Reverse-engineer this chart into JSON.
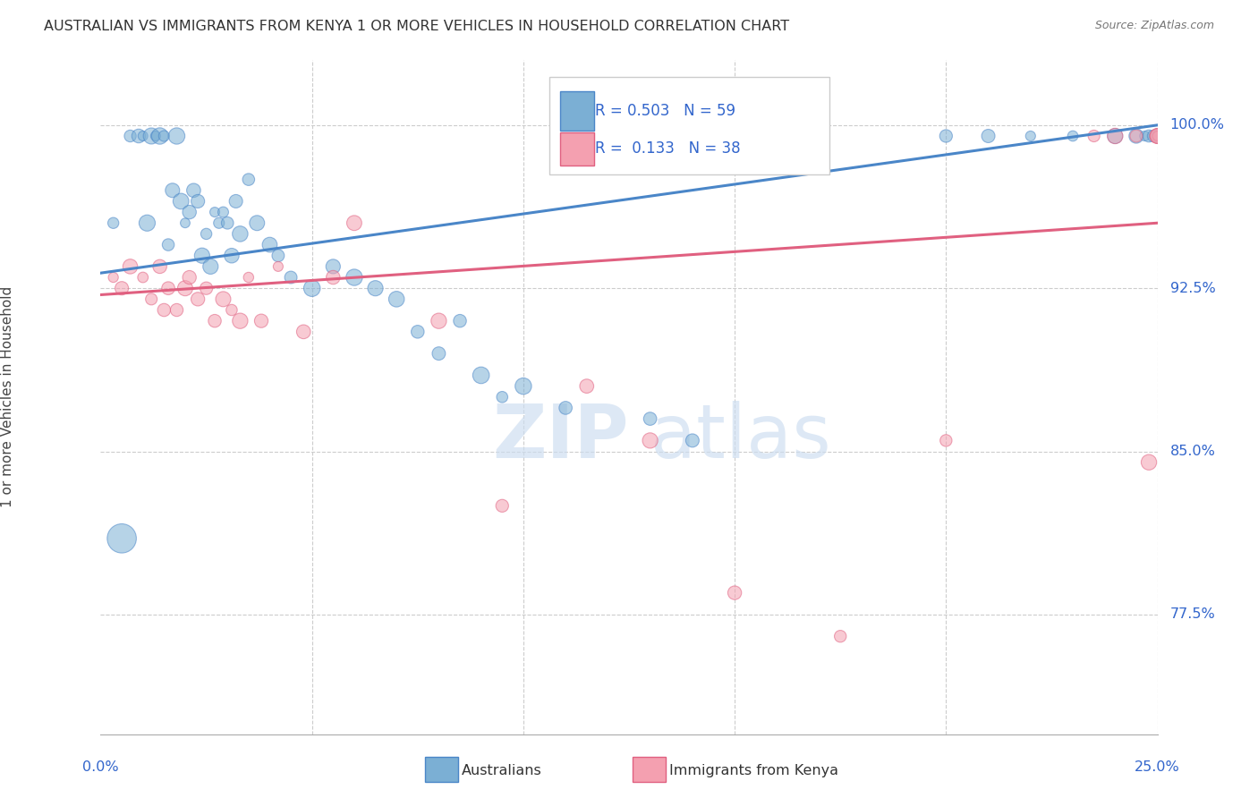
{
  "title": "AUSTRALIAN VS IMMIGRANTS FROM KENYA 1 OR MORE VEHICLES IN HOUSEHOLD CORRELATION CHART",
  "source": "Source: ZipAtlas.com",
  "ylabel": "1 or more Vehicles in Household",
  "ytick_values": [
    77.5,
    85.0,
    92.5,
    100.0
  ],
  "xmin": 0.0,
  "xmax": 25.0,
  "ymin": 72.0,
  "ymax": 103.0,
  "color_aus": "#7BAFD4",
  "color_aus_edge": "#4A86C8",
  "color_kenya": "#F4A0B0",
  "color_kenya_edge": "#E06080",
  "color_aus_line": "#4A86C8",
  "color_kenya_line": "#E06080",
  "aus_x": [
    0.3,
    0.5,
    0.7,
    0.9,
    1.0,
    1.1,
    1.2,
    1.3,
    1.4,
    1.5,
    1.6,
    1.7,
    1.8,
    1.9,
    2.0,
    2.1,
    2.2,
    2.3,
    2.4,
    2.5,
    2.6,
    2.7,
    2.8,
    2.9,
    3.0,
    3.1,
    3.2,
    3.3,
    3.5,
    3.7,
    4.0,
    4.2,
    4.5,
    5.0,
    5.5,
    6.0,
    6.5,
    7.0,
    7.5,
    8.0,
    8.5,
    9.0,
    9.5,
    10.0,
    11.0,
    13.0,
    14.0,
    20.0,
    21.0,
    22.0,
    23.0,
    24.0,
    24.5,
    24.7,
    24.8,
    24.9,
    25.0,
    25.0,
    25.0
  ],
  "aus_y": [
    95.5,
    81.0,
    99.5,
    99.5,
    99.5,
    95.5,
    99.5,
    99.5,
    99.5,
    99.5,
    94.5,
    97.0,
    99.5,
    96.5,
    95.5,
    96.0,
    97.0,
    96.5,
    94.0,
    95.0,
    93.5,
    96.0,
    95.5,
    96.0,
    95.5,
    94.0,
    96.5,
    95.0,
    97.5,
    95.5,
    94.5,
    94.0,
    93.0,
    92.5,
    93.5,
    93.0,
    92.5,
    92.0,
    90.5,
    89.5,
    91.0,
    88.5,
    87.5,
    88.0,
    87.0,
    86.5,
    85.5,
    99.5,
    99.5,
    99.5,
    99.5,
    99.5,
    99.5,
    99.5,
    99.5,
    99.5,
    99.5,
    99.5,
    99.5
  ],
  "kenya_x": [
    0.3,
    0.5,
    0.7,
    1.0,
    1.2,
    1.4,
    1.5,
    1.6,
    1.8,
    2.0,
    2.1,
    2.3,
    2.5,
    2.7,
    2.9,
    3.1,
    3.3,
    3.5,
    3.8,
    4.2,
    4.8,
    5.5,
    6.0,
    8.0,
    9.5,
    11.5,
    13.0,
    15.0,
    17.5,
    20.0,
    23.5,
    24.0,
    24.5,
    24.8,
    25.0,
    25.0,
    25.0,
    25.0
  ],
  "kenya_y": [
    93.0,
    92.5,
    93.5,
    93.0,
    92.0,
    93.5,
    91.5,
    92.5,
    91.5,
    92.5,
    93.0,
    92.0,
    92.5,
    91.0,
    92.0,
    91.5,
    91.0,
    93.0,
    91.0,
    93.5,
    90.5,
    93.0,
    95.5,
    91.0,
    82.5,
    88.0,
    85.5,
    78.5,
    76.5,
    85.5,
    99.5,
    99.5,
    99.5,
    84.5,
    99.5,
    99.5,
    99.5,
    99.5
  ],
  "r_aus": 0.503,
  "n_aus": 59,
  "r_kenya": 0.133,
  "n_kenya": 38
}
